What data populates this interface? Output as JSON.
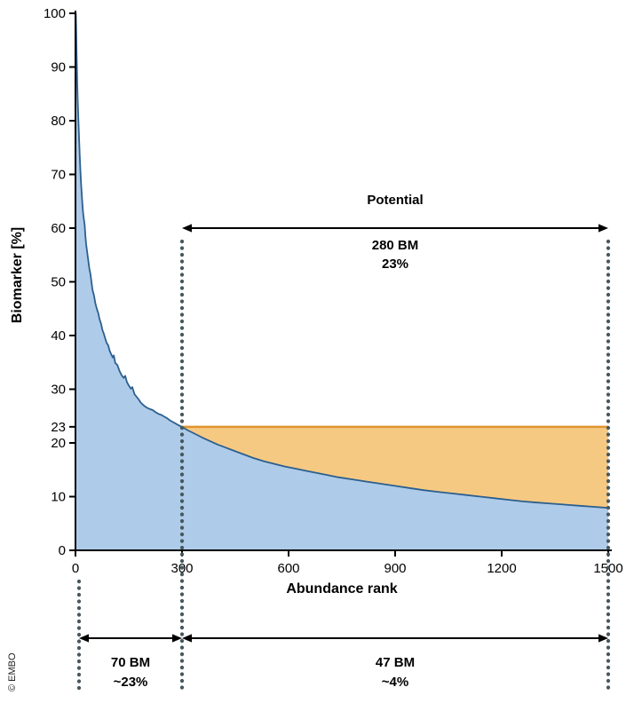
{
  "figure": {
    "credit": "© EMBO"
  },
  "chart_data": {
    "type": "area",
    "title": "",
    "xlabel": "Abundance rank",
    "ylabel": "Biomarker [%]",
    "xlim": [
      0,
      1500
    ],
    "ylim": [
      0,
      100
    ],
    "x_ticks": [
      0,
      300,
      600,
      900,
      1200,
      1500
    ],
    "y_ticks": [
      0,
      10,
      20,
      23,
      30,
      40,
      50,
      60,
      70,
      80,
      90,
      100
    ],
    "grid": false,
    "legend": "none",
    "threshold_y": 23,
    "threshold_x_start": 300,
    "threshold_x_end": 1500,
    "colors": {
      "area_fill": "#aecbe9",
      "area_stroke": "#2b5f8e",
      "highlight_fill": "#f6c983",
      "highlight_stroke": "#e0962f",
      "dotted_line": "#47585f",
      "axis": "#000000"
    },
    "annotations": {
      "potential": {
        "title": "Potential",
        "line1": "280 BM",
        "line2": "23%",
        "x_start": 300,
        "x_end": 1500
      },
      "bottom_left": {
        "line1": "70 BM",
        "line2": "~23%",
        "x_start": 10,
        "x_end": 300
      },
      "bottom_right": {
        "line1": "47 BM",
        "line2": "~4%",
        "x_start": 300,
        "x_end": 1500
      }
    },
    "curve_points": [
      [
        1,
        100
      ],
      [
        2,
        97
      ],
      [
        3,
        93
      ],
      [
        4,
        90
      ],
      [
        5,
        87
      ],
      [
        6,
        84.5
      ],
      [
        7,
        82.5
      ],
      [
        8,
        80.5
      ],
      [
        10,
        77
      ],
      [
        12,
        73.5
      ],
      [
        14,
        70.5
      ],
      [
        16,
        68
      ],
      [
        18,
        66
      ],
      [
        20,
        64
      ],
      [
        22,
        62.5
      ],
      [
        24,
        61.5
      ],
      [
        26,
        60.5
      ],
      [
        28,
        58.5
      ],
      [
        30,
        57
      ],
      [
        33,
        55.5
      ],
      [
        36,
        54
      ],
      [
        39,
        52.5
      ],
      [
        42,
        51.5
      ],
      [
        45,
        50
      ],
      [
        48,
        48.5
      ],
      [
        52,
        47.5
      ],
      [
        56,
        46
      ],
      [
        60,
        45
      ],
      [
        64,
        44.2
      ],
      [
        68,
        43
      ],
      [
        72,
        42.2
      ],
      [
        76,
        41
      ],
      [
        80,
        40.3
      ],
      [
        84,
        39.4
      ],
      [
        88,
        38.6
      ],
      [
        92,
        38.2
      ],
      [
        96,
        37.2
      ],
      [
        100,
        36.6
      ],
      [
        105,
        35.9
      ],
      [
        108,
        36.3
      ],
      [
        112,
        34.9
      ],
      [
        118,
        34.5
      ],
      [
        124,
        33.4
      ],
      [
        130,
        32.6
      ],
      [
        136,
        32.1
      ],
      [
        140,
        32.5
      ],
      [
        145,
        31.3
      ],
      [
        150,
        30.7
      ],
      [
        156,
        30.1
      ],
      [
        160,
        30.4
      ],
      [
        166,
        29.1
      ],
      [
        172,
        28.6
      ],
      [
        178,
        28.1
      ],
      [
        184,
        27.5
      ],
      [
        190,
        27.1
      ],
      [
        196,
        26.8
      ],
      [
        203,
        26.5
      ],
      [
        210,
        26.3
      ],
      [
        218,
        26.1
      ],
      [
        226,
        25.7
      ],
      [
        234,
        25.4
      ],
      [
        242,
        25.2
      ],
      [
        250,
        24.9
      ],
      [
        258,
        24.6
      ],
      [
        266,
        24.2
      ],
      [
        274,
        23.9
      ],
      [
        282,
        23.6
      ],
      [
        290,
        23.3
      ],
      [
        300,
        23
      ],
      [
        315,
        22.4
      ],
      [
        330,
        21.9
      ],
      [
        345,
        21.4
      ],
      [
        360,
        20.9
      ],
      [
        380,
        20.3
      ],
      [
        400,
        19.7
      ],
      [
        420,
        19.2
      ],
      [
        440,
        18.7
      ],
      [
        460,
        18.2
      ],
      [
        480,
        17.7
      ],
      [
        500,
        17.2
      ],
      [
        530,
        16.6
      ],
      [
        560,
        16.1
      ],
      [
        590,
        15.6
      ],
      [
        620,
        15.2
      ],
      [
        650,
        14.8
      ],
      [
        680,
        14.4
      ],
      [
        710,
        14
      ],
      [
        740,
        13.6
      ],
      [
        780,
        13.2
      ],
      [
        820,
        12.8
      ],
      [
        860,
        12.4
      ],
      [
        900,
        12
      ],
      [
        940,
        11.6
      ],
      [
        980,
        11.2
      ],
      [
        1020,
        10.9
      ],
      [
        1060,
        10.6
      ],
      [
        1100,
        10.3
      ],
      [
        1140,
        10
      ],
      [
        1180,
        9.7
      ],
      [
        1220,
        9.4
      ],
      [
        1260,
        9.1
      ],
      [
        1300,
        8.9
      ],
      [
        1340,
        8.7
      ],
      [
        1380,
        8.5
      ],
      [
        1420,
        8.3
      ],
      [
        1460,
        8.1
      ],
      [
        1500,
        7.9
      ]
    ]
  }
}
